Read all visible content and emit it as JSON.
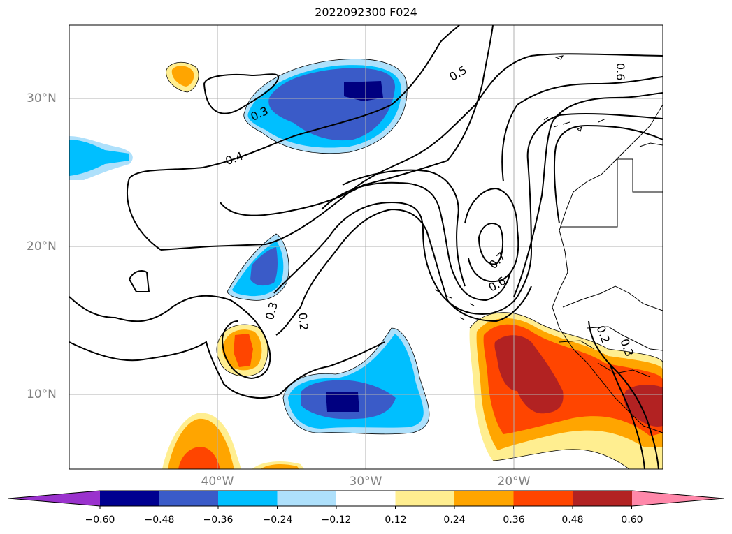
{
  "title": "2022092300 F024",
  "map": {
    "lat_labels": [
      "30°N",
      "20°N",
      "10°N"
    ],
    "lon_labels": [
      "40°W",
      "30°W",
      "20°W"
    ],
    "contour_labels": [
      "0.3",
      "0.4",
      "0.5",
      "0.6",
      "0.7",
      "0.6",
      "0.3",
      "0.2",
      "0.2",
      "0.3"
    ],
    "colors": {
      "neg_060": "#000080",
      "neg_048": "#3a5bc8",
      "neg_036": "#00bfff",
      "neg_024": "#aee0fb",
      "pos_024": "#ffee90",
      "pos_036": "#ffa500",
      "pos_048": "#ff4500",
      "pos_060": "#b22222"
    }
  },
  "colorbar": {
    "colors": [
      "#9a32cd",
      "#000090",
      "#3a5bc8",
      "#00bfff",
      "#aee0fb",
      "#ffffff",
      "#ffee90",
      "#ffa500",
      "#ff4500",
      "#b22222",
      "#ff88aa"
    ],
    "tick_labels": [
      "−0.60",
      "−0.48",
      "−0.36",
      "−0.24",
      "−0.12",
      "0.12",
      "0.24",
      "0.36",
      "0.48",
      "0.60"
    ]
  }
}
